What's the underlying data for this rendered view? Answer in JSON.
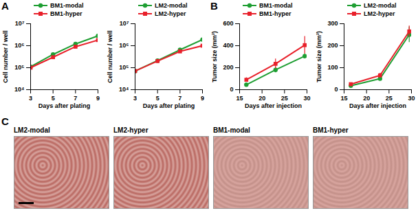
{
  "chart_data": [
    {
      "type": "line",
      "panel": "A",
      "log": "y",
      "x_label": "Days after plating",
      "y_label": "Cell number / well",
      "x": [
        3,
        5,
        7,
        9
      ],
      "xlim": [
        3,
        9
      ],
      "xticks": [
        3,
        5,
        7,
        9
      ],
      "ylim": [
        10000,
        10000000
      ],
      "yticks": [
        {
          "value": 10000,
          "label": "10⁴"
        },
        {
          "value": 100000,
          "label": "10⁵"
        },
        {
          "value": 1000000,
          "label": "10⁶"
        },
        {
          "value": 10000000,
          "label": "10⁷"
        }
      ],
      "series": [
        {
          "name": "BM1-modal",
          "color": "#1e9e32",
          "marker": "circle",
          "values": [
            110000,
            400000,
            1200000,
            2800000
          ]
        },
        {
          "name": "BM1-hyper",
          "color": "#e8202a",
          "marker": "square",
          "values": [
            100000,
            300000,
            900000,
            1800000
          ]
        }
      ]
    },
    {
      "type": "line",
      "log": "y",
      "x_label": "Days after plating",
      "y_label": "Cell number / well",
      "x": [
        3,
        5,
        7,
        9
      ],
      "xlim": [
        3,
        9
      ],
      "xticks": [
        3,
        5,
        7,
        9
      ],
      "ylim": [
        10000,
        10000000
      ],
      "yticks": [
        {
          "value": 10000,
          "label": "10⁴"
        },
        {
          "value": 100000,
          "label": "10⁵"
        },
        {
          "value": 1000000,
          "label": "10⁶"
        },
        {
          "value": 10000000,
          "label": "10⁷"
        }
      ],
      "series": [
        {
          "name": "LM2-modal",
          "color": "#1e9e32",
          "marker": "circle",
          "values": [
            70000,
            210000,
            650000,
            1900000
          ]
        },
        {
          "name": "LM2-hyper",
          "color": "#e8202a",
          "marker": "square",
          "values": [
            70000,
            200000,
            550000,
            1000000
          ]
        }
      ]
    },
    {
      "type": "line",
      "panel": "B",
      "x_label": "Days after injection",
      "y_label": "Tumor size (mm³)",
      "x": [
        16.5,
        23,
        29.5
      ],
      "xlim": [
        15,
        30
      ],
      "xticks": [
        15,
        20,
        25,
        30
      ],
      "ylim": [
        0,
        600
      ],
      "yticks": [
        0,
        200,
        400,
        600
      ],
      "series": [
        {
          "name": "BM1-modal",
          "color": "#1e9e32",
          "marker": "circle",
          "values": [
            45,
            180,
            305
          ],
          "errors": [
            8,
            25,
            20
          ]
        },
        {
          "name": "BM1-hyper",
          "color": "#e8202a",
          "marker": "square",
          "values": [
            90,
            235,
            405
          ],
          "errors": [
            20,
            45,
            80
          ]
        }
      ]
    },
    {
      "type": "line",
      "x_label": "Days after injection",
      "y_label": "Tumor size (mm³)",
      "x": [
        16.5,
        23,
        29.5
      ],
      "xlim": [
        15,
        30
      ],
      "xticks": [
        15,
        20,
        25,
        30
      ],
      "ylim": [
        0,
        300
      ],
      "yticks": [
        0,
        100,
        200,
        300
      ],
      "series": [
        {
          "name": "LM2-modal",
          "color": "#1e9e32",
          "marker": "circle",
          "values": [
            18,
            50,
            250
          ],
          "errors": [
            3,
            5,
            35
          ]
        },
        {
          "name": "LM2-hyper",
          "color": "#e8202a",
          "marker": "square",
          "values": [
            25,
            65,
            265
          ],
          "errors": [
            5,
            10,
            25
          ]
        }
      ]
    }
  ],
  "images": {
    "panel": "C",
    "labels": [
      "LM2-modal",
      "LM2-hyper",
      "BM1-modal",
      "BM1-hyper"
    ]
  }
}
